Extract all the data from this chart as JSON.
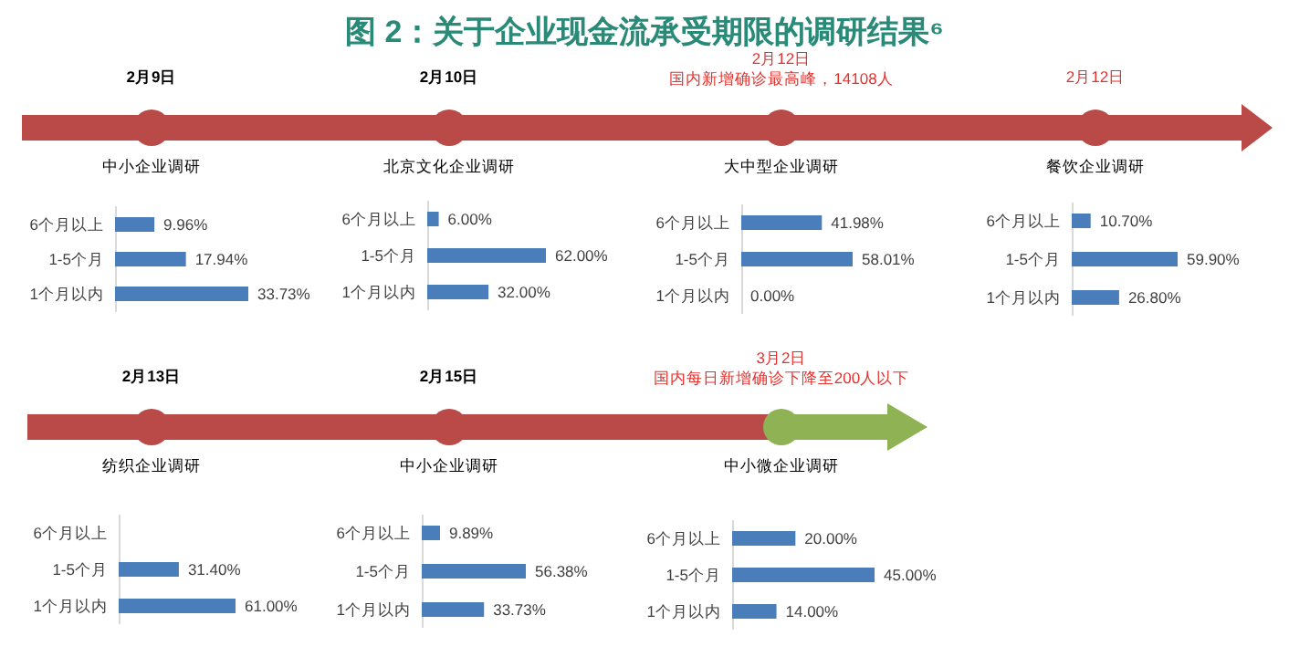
{
  "chart_data": [
    {
      "type": "other",
      "title": "图 2：关于企业现金流承受期限的调研结果⁶"
    },
    {
      "type": "bar",
      "orientation": "horizontal",
      "subtitle": "2月9日",
      "title": "中小企业调研",
      "categories": [
        "6个月以上",
        "1-5个月",
        "1个月以内"
      ],
      "values": [
        9.96,
        17.94,
        33.73
      ],
      "value_labels": [
        "9.96%",
        "17.94%",
        "33.73%"
      ],
      "color": "#4a7ebb"
    },
    {
      "type": "bar",
      "orientation": "horizontal",
      "subtitle": "2月10日",
      "title": "北京文化企业调研",
      "categories": [
        "6个月以上",
        "1-5个月",
        "1个月以内"
      ],
      "values": [
        6,
        62,
        32
      ],
      "value_labels": [
        "6.00%",
        "62.00%",
        "32.00%"
      ],
      "color": "#4a7ebb"
    },
    {
      "type": "bar",
      "orientation": "horizontal",
      "subtitle": "2月12日",
      "annotations": [
        "国内新增确诊最高峰，14108人"
      ],
      "title": "大中型企业调研",
      "categories": [
        "6个月以上",
        "1-5个月",
        "1个月以内"
      ],
      "values": [
        41.98,
        58.01,
        0
      ],
      "value_labels": [
        "41.98%",
        "58.01%",
        "0.00%"
      ],
      "color": "#4a7ebb"
    },
    {
      "type": "bar",
      "orientation": "horizontal",
      "subtitle": "2月12日",
      "title": "餐饮企业调研",
      "categories": [
        "6个月以上",
        "1-5个月",
        "1个月以内"
      ],
      "values": [
        10.7,
        59.9,
        26.8
      ],
      "value_labels": [
        "10.70%",
        "59.90%",
        "26.80%"
      ],
      "color": "#4a7ebb"
    },
    {
      "type": "bar",
      "orientation": "horizontal",
      "subtitle": "2月13日",
      "title": "纺织企业调研",
      "categories": [
        "6个月以上",
        "1-5个月",
        "1个月以内"
      ],
      "values": [
        null,
        31.4,
        61
      ],
      "value_labels": [
        null,
        "31.40%",
        "61.00%"
      ],
      "color": "#4a7ebb"
    },
    {
      "type": "bar",
      "orientation": "horizontal",
      "subtitle": "2月15日",
      "title": "中小企业调研",
      "categories": [
        "6个月以上",
        "1-5个月",
        "1个月以内"
      ],
      "values": [
        9.89,
        56.38,
        33.73
      ],
      "value_labels": [
        "9.89%",
        "56.38%",
        "33.73%"
      ],
      "color": "#4a7ebb"
    },
    {
      "type": "bar",
      "orientation": "horizontal",
      "subtitle": "3月2日",
      "annotations": [
        "国内每日新增确诊下降至200人以下"
      ],
      "title": "中小微企业调研",
      "categories": [
        "6个月以上",
        "1-5个月",
        "1个月以内"
      ],
      "values": [
        20,
        45,
        14
      ],
      "value_labels": [
        "20.00%",
        "45.00%",
        "14.00%"
      ],
      "color": "#4a7ebb"
    }
  ]
}
